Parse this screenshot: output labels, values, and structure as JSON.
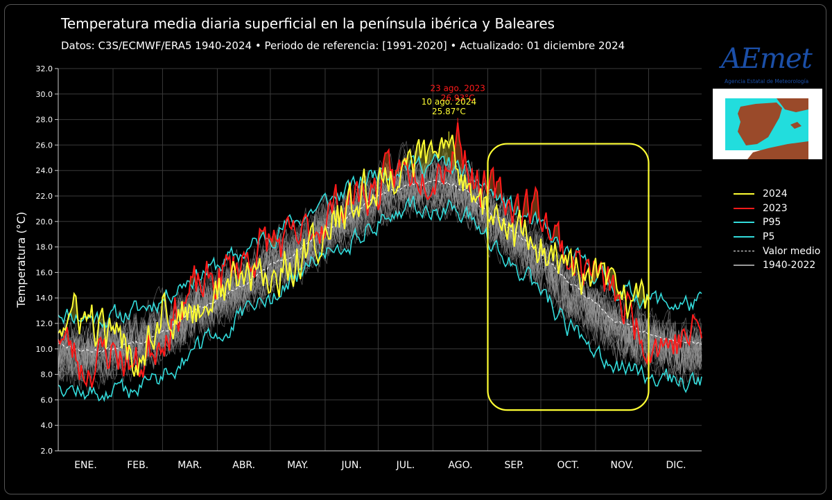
{
  "header": {
    "title": "Temperatura media diaria superficial en la península ibérica y Baleares",
    "subtitle": "Datos: C3S/ECMWF/ERA5 1940-2024   •   Periodo de referencia: [1991-2020]  •  Actualizado: 01 diciembre 2024"
  },
  "logo": {
    "brand": "AEmet",
    "subtitle": "Agencia Estatal de Meteorología"
  },
  "colors": {
    "y2024": "#ffff33",
    "y2023": "#ff1a1a",
    "percentile": "#33dddd",
    "mean": "#ffffff",
    "history": "#9a9a9a",
    "highlight_box": "#ffff33",
    "inset_sea": "#22dddd",
    "inset_land": "#9a4a2a"
  },
  "chart_data": {
    "type": "line",
    "ylabel": "Temperatura (°C)",
    "ylim": [
      2.0,
      32.0
    ],
    "yticks": [
      "2.0",
      "4.0",
      "6.0",
      "8.0",
      "10.0",
      "12.0",
      "14.0",
      "16.0",
      "18.0",
      "20.0",
      "22.0",
      "24.0",
      "26.0",
      "28.0",
      "30.0",
      "32.0"
    ],
    "month_labels": [
      "ENE.",
      "FEB.",
      "MAR.",
      "ABR.",
      "MAY.",
      "JUN.",
      "JUL.",
      "AGO.",
      "SEP.",
      "OCT.",
      "NOV.",
      "DIC."
    ],
    "x_days": [
      1,
      15,
      32,
      46,
      60,
      74,
      91,
      105,
      121,
      135,
      152,
      166,
      182,
      196,
      213,
      222,
      227,
      235,
      244,
      258,
      274,
      288,
      305,
      319,
      335,
      349,
      365
    ],
    "series": [
      {
        "name": "2024",
        "values": [
          12.0,
          12.5,
          10.5,
          9.5,
          13.5,
          12.5,
          14.5,
          15.5,
          15.5,
          17.0,
          19.0,
          21.0,
          23.0,
          24.5,
          24.8,
          25.87,
          24.5,
          23.0,
          20.5,
          19.0,
          18.0,
          16.5,
          15.0,
          14.0,
          13.5,
          null,
          null
        ]
      },
      {
        "name": "2023",
        "values": [
          11.5,
          8.5,
          10.0,
          8.5,
          11.5,
          14.0,
          15.5,
          17.0,
          18.5,
          18.0,
          20.5,
          22.0,
          22.5,
          24.0,
          24.5,
          25.0,
          26.93,
          24.0,
          22.0,
          21.5,
          21.0,
          17.5,
          16.0,
          13.5,
          11.0,
          10.5,
          11.5
        ]
      },
      {
        "name": "P95",
        "values": [
          13.0,
          12.5,
          12.5,
          13.0,
          14.0,
          15.5,
          16.5,
          17.5,
          19.0,
          20.0,
          21.5,
          22.5,
          24.0,
          24.5,
          24.5,
          24.5,
          24.0,
          23.5,
          22.5,
          21.0,
          19.5,
          17.5,
          16.0,
          14.5,
          14.0,
          13.5,
          13.5
        ]
      },
      {
        "name": "P5",
        "values": [
          7.5,
          6.5,
          6.5,
          7.0,
          8.0,
          9.5,
          11.0,
          12.5,
          14.0,
          15.5,
          17.5,
          18.5,
          20.0,
          21.0,
          21.0,
          21.0,
          20.5,
          20.0,
          18.5,
          16.5,
          14.5,
          12.0,
          10.0,
          8.5,
          8.0,
          7.5,
          7.5
        ]
      },
      {
        "name": "Valor medio",
        "values": [
          10.5,
          9.8,
          10.0,
          10.5,
          11.3,
          12.5,
          14.0,
          15.0,
          16.5,
          17.5,
          19.5,
          20.5,
          22.0,
          22.8,
          23.0,
          23.0,
          22.8,
          22.0,
          20.8,
          19.3,
          17.5,
          15.5,
          13.5,
          12.0,
          11.2,
          10.6,
          10.5
        ]
      },
      {
        "name": "1940-2022",
        "values": [
          9.5,
          9.0,
          9.5,
          10.0,
          11.0,
          12.0,
          13.5,
          14.5,
          16.0,
          17.0,
          19.0,
          20.0,
          21.5,
          22.5,
          22.5,
          22.5,
          22.0,
          21.5,
          20.0,
          18.5,
          16.5,
          14.5,
          12.5,
          11.0,
          10.0,
          9.5,
          9.5
        ]
      }
    ],
    "annotations": [
      {
        "label": "23 ago. 2023",
        "value_label": "26.93°C",
        "day": 227,
        "value": 26.93,
        "series": "2023"
      },
      {
        "label": "10 ago. 2024",
        "value_label": "25.87°C",
        "day": 222,
        "value": 25.87,
        "series": "2024"
      }
    ],
    "highlight_box": {
      "day_start": 244,
      "day_end": 335,
      "y_low": 5.2,
      "y_high": 26.1
    },
    "grid": true,
    "legend_placement": "right"
  }
}
